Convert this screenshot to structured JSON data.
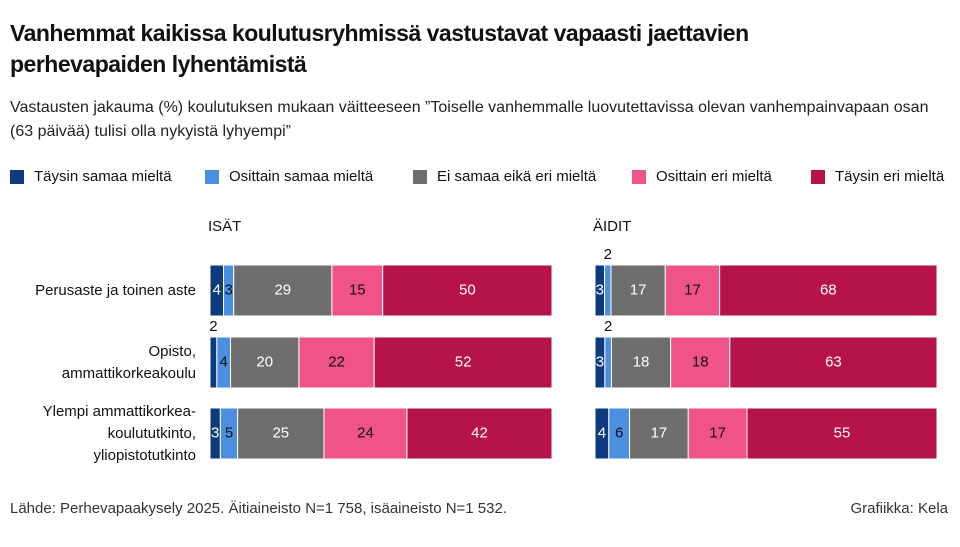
{
  "title": "Vanhemmat kaikissa koulutusryhmissä vastustavat vapaasti jaettavien perhevapaiden lyhentämistä",
  "subtitle": "Vastausten jakauma (%) koulutuksen mukaan väitteeseen ”Toiselle vanhemmalle luovutettavissa olevan vanhempainvapaan osan (63 päivää) tulisi olla nykyistä lyhyempi”",
  "source": "Lähde: Perhevapaakysely 2025. Äitiaineisto N=1 758, isäaineisto N=1 532.",
  "credit": "Grafiikka: Kela",
  "chart_data": [
    {
      "type": "stacked-bar-100",
      "title": "ISÄT",
      "categories": [
        "Perusaste ja toinen aste",
        "Opisto,\nammattikorkeakoulu",
        "Ylempi ammattikorkea-\nkoulututkinto,\nyliopistotutkinto"
      ],
      "series": [
        {
          "name": "Täysin samaa mieltä",
          "color": "#0d3b7d",
          "values": [
            4,
            2,
            3
          ]
        },
        {
          "name": "Osittain samaa mieltä",
          "color": "#4a8fe0",
          "values": [
            3,
            4,
            5
          ]
        },
        {
          "name": "Ei samaa eikä eri mieltä",
          "color": "#6e6e6e",
          "values": [
            29,
            20,
            25
          ]
        },
        {
          "name": "Osittain eri mieltä",
          "color": "#f0528a",
          "values": [
            15,
            22,
            24
          ]
        },
        {
          "name": "Täysin eri mieltä",
          "color": "#b5134a",
          "values": [
            50,
            52,
            42
          ]
        }
      ]
    },
    {
      "type": "stacked-bar-100",
      "title": "ÄIDIT",
      "series": [
        {
          "values": [
            3,
            3,
            4
          ]
        },
        {
          "values": [
            2,
            2,
            6
          ]
        },
        {
          "values": [
            17,
            18,
            17
          ]
        },
        {
          "values": [
            17,
            18,
            17
          ]
        },
        {
          "values": [
            68,
            63,
            55
          ]
        }
      ]
    }
  ]
}
